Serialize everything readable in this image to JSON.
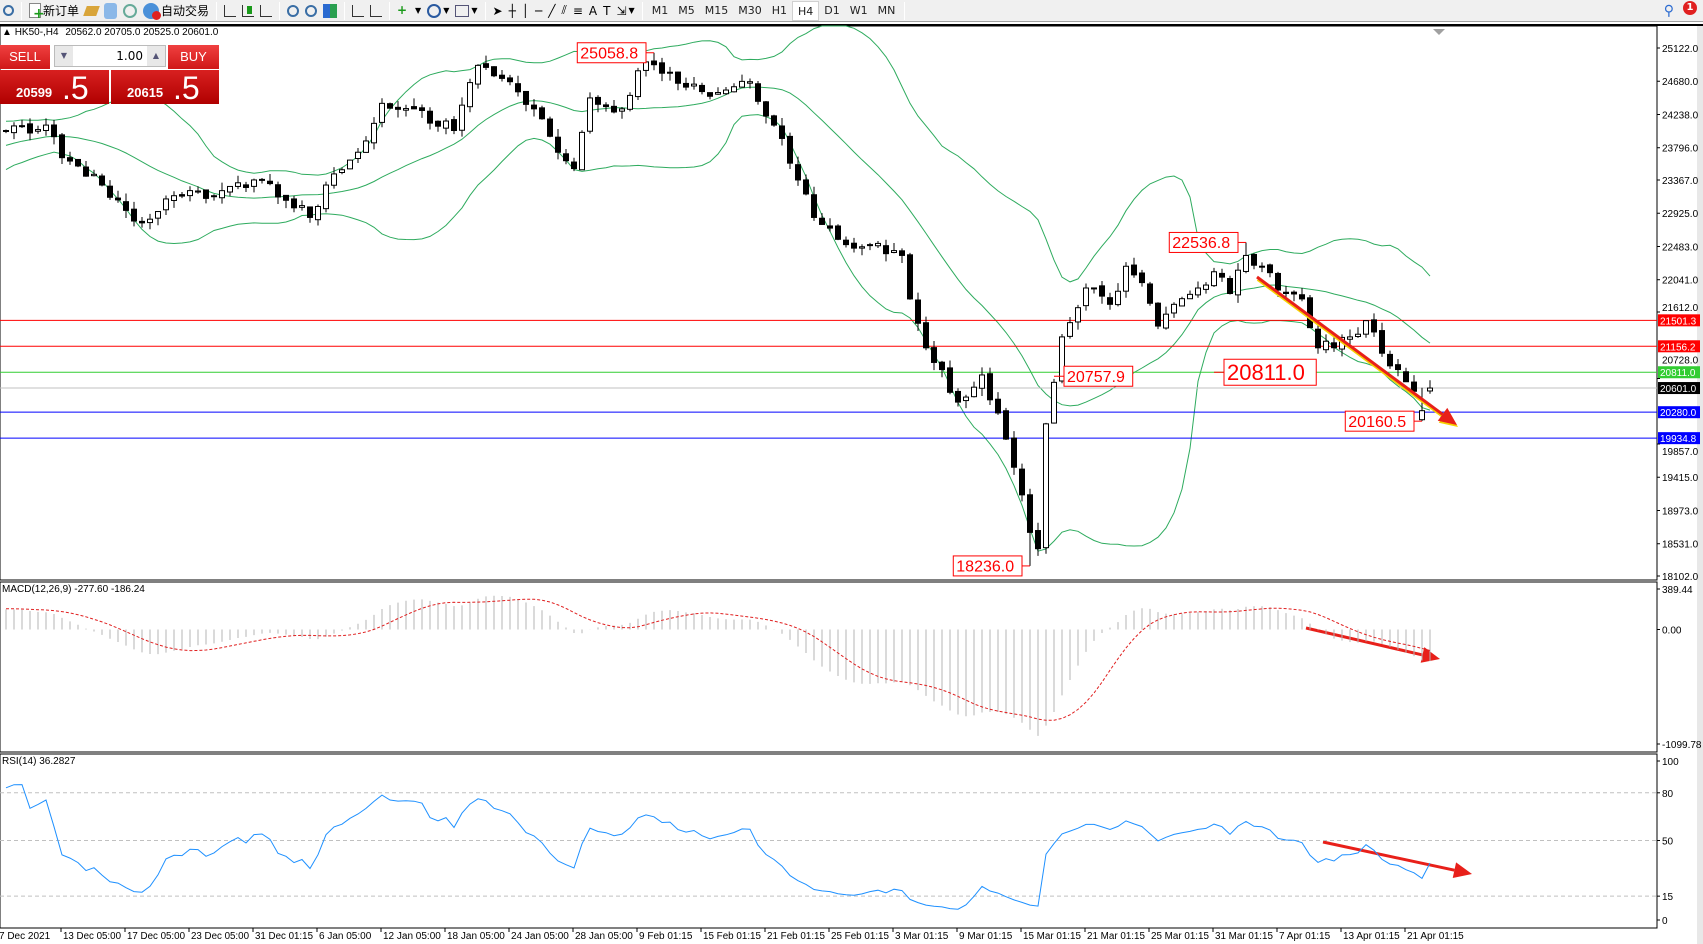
{
  "toolbar": {
    "new_order": "新订单",
    "auto_trading": "自动交易",
    "timeframes": [
      "M1",
      "M5",
      "M15",
      "M30",
      "H1",
      "H4",
      "D1",
      "W1",
      "MN"
    ],
    "active_timeframe": "H4",
    "notification_count": "1"
  },
  "chart": {
    "symbol": "HK50-,H4",
    "ohlc": "20562.0 20705.0 20525.0 20601.0"
  },
  "trade_panel": {
    "sell_label": "SELL",
    "buy_label": "BUY",
    "lot": "1.00",
    "sell_price_main": "20599",
    "sell_price_big": ".5",
    "buy_price_main": "20615",
    "buy_price_big": ".5"
  },
  "price_axis": {
    "ticks": [
      "25122.0",
      "24680.0",
      "24238.0",
      "23796.0",
      "23367.0",
      "22925.0",
      "22483.0",
      "22041.0",
      "21612.0",
      "20728.0",
      "19857.0",
      "19415.0",
      "18973.0",
      "18531.0",
      "18102.0"
    ]
  },
  "levels": [
    {
      "value": "21501.3",
      "color": "#ff0000",
      "text_color": "#ffffff"
    },
    {
      "value": "21156.2",
      "color": "#ff0000",
      "text_color": "#ffffff"
    },
    {
      "value": "20811.0",
      "color": "#32cd32",
      "text_color": "#ffffff"
    },
    {
      "value": "20601.0",
      "color": "#c0c0c0",
      "label_bg": "#000000",
      "text_color": "#ffffff"
    },
    {
      "value": "20280.0",
      "color": "#0000ff",
      "text_color": "#ffffff"
    },
    {
      "value": "19934.8",
      "color": "#0000ff",
      "text_color": "#ffffff"
    }
  ],
  "annotations": [
    {
      "key": "high1",
      "text": "25058.8"
    },
    {
      "key": "high2",
      "text": "22536.8"
    },
    {
      "key": "low1",
      "text": "20757.9"
    },
    {
      "key": "level",
      "text": "20811.0"
    },
    {
      "key": "low2",
      "text": "20160.5"
    },
    {
      "key": "low0",
      "text": "18236.0"
    }
  ],
  "macd": {
    "label": "MACD(12,26,9) -277.60 -186.24",
    "ticks": [
      "389.44",
      "0.00",
      "-1099.78"
    ]
  },
  "rsi": {
    "label": "RSI(14) 36.2827",
    "ticks": [
      "100",
      "80",
      "50",
      "15",
      "0"
    ]
  },
  "time_axis": [
    "7 Dec 2021",
    "13 Dec 05:00",
    "17 Dec 05:00",
    "23 Dec 05:00",
    "31 Dec 01:15",
    "6 Jan 05:00",
    "12 Jan 05:00",
    "18 Jan 05:00",
    "24 Jan 05:00",
    "28 Jan 05:00",
    "9 Feb 01:15",
    "15 Feb 01:15",
    "21 Feb 01:15",
    "25 Feb 01:15",
    "3 Mar 01:15",
    "9 Mar 01:15",
    "15 Mar 01:15",
    "21 Mar 01:15",
    "25 Mar 01:15",
    "31 Mar 01:15",
    "7 Apr 01:15",
    "13 Apr 01:15",
    "21 Apr 01:15"
  ],
  "colors": {
    "bands": "#2eab5e",
    "arrow": "#e8201a",
    "arrow_glow": "#f5d000",
    "signal": "#e02020",
    "histogram": "#b4b4b4",
    "rsi": "#1e90ff"
  },
  "chart_data": {
    "type": "candlestick",
    "indicators": [
      "Bollinger Bands",
      "MACD(12,26,9)",
      "RSI(14)"
    ],
    "close_path": [
      [
        -30,
        23000
      ],
      [
        -15,
        23700
      ],
      [
        0,
        24025
      ],
      [
        5,
        24097
      ],
      [
        7,
        23664
      ],
      [
        12,
        23300
      ],
      [
        17,
        22797
      ],
      [
        21,
        23158
      ],
      [
        26,
        23158
      ],
      [
        32,
        23375
      ],
      [
        38,
        22869
      ],
      [
        40,
        23300
      ],
      [
        44,
        23736
      ],
      [
        47,
        24386
      ],
      [
        51,
        24313
      ],
      [
        56,
        24025
      ],
      [
        59,
        24891
      ],
      [
        63,
        24674
      ],
      [
        66,
        24313
      ],
      [
        69,
        23736
      ],
      [
        71,
        23519
      ],
      [
        73,
        24458
      ],
      [
        77,
        24313
      ],
      [
        79,
        24819
      ],
      [
        81,
        24900
      ],
      [
        85,
        24602
      ],
      [
        89,
        24530
      ],
      [
        93,
        24674
      ],
      [
        96,
        24097
      ],
      [
        98,
        23591
      ],
      [
        101,
        22869
      ],
      [
        105,
        22508
      ],
      [
        108,
        22508
      ],
      [
        112,
        22364
      ],
      [
        113,
        21786
      ],
      [
        115,
        21136
      ],
      [
        119,
        20414
      ],
      [
        122,
        20775
      ],
      [
        124,
        20270
      ],
      [
        126,
        19548
      ],
      [
        128,
        18682
      ],
      [
        129,
        18465
      ],
      [
        130,
        20125
      ],
      [
        132,
        21281
      ],
      [
        135,
        21931
      ],
      [
        138,
        21714
      ],
      [
        140,
        22220
      ],
      [
        142,
        22003
      ],
      [
        144,
        21425
      ],
      [
        146,
        21714
      ],
      [
        149,
        21931
      ],
      [
        151,
        22147
      ],
      [
        153,
        21858
      ],
      [
        155,
        22364
      ],
      [
        157,
        22220
      ],
      [
        160,
        21858
      ],
      [
        162,
        21786
      ],
      [
        164,
        21136
      ],
      [
        168,
        21281
      ],
      [
        170,
        21497
      ],
      [
        172,
        21064
      ],
      [
        174,
        20847
      ],
      [
        176,
        20558
      ],
      [
        177,
        20300
      ],
      [
        178,
        20601
      ]
    ],
    "last_bar": {
      "open": 20562.0,
      "high": 20705.0,
      "low": 20525.0,
      "close": 20601.0
    },
    "price_range": [
      18102.0,
      25122.0
    ],
    "macd_range": [
      -1099.78,
      389.44
    ],
    "rsi_range": [
      0,
      100
    ],
    "rsi_levels": [
      80,
      50,
      15
    ]
  }
}
